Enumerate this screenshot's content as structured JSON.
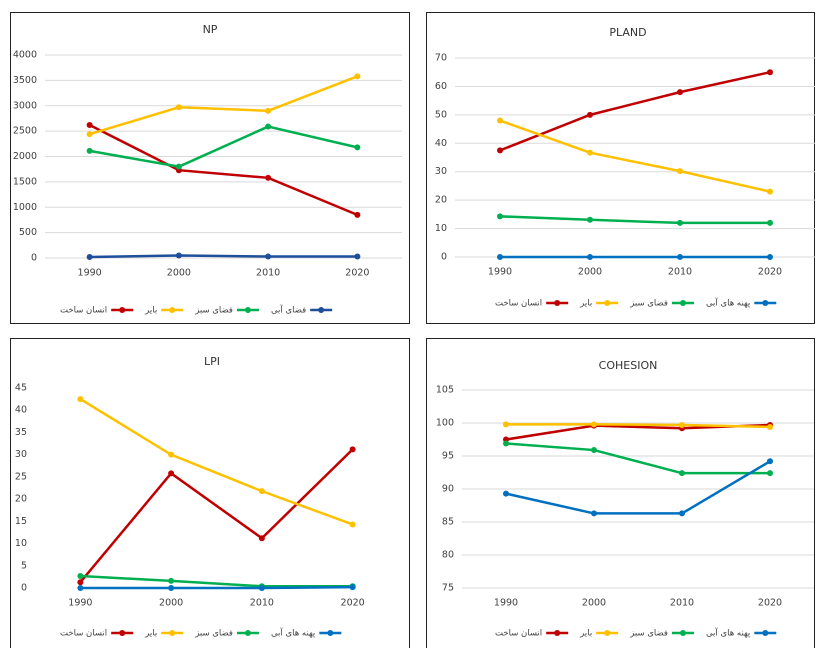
{
  "chart_data": [
    {
      "type": "line",
      "title": "NP",
      "categories": [
        "1990",
        "2000",
        "2010",
        "2020"
      ],
      "series": [
        {
          "name": "انسان ساخت",
          "color": "#c00000",
          "values": [
            2620,
            1730,
            1580,
            850
          ]
        },
        {
          "name": "بایر",
          "color": "#ffc000",
          "values": [
            2440,
            2970,
            2900,
            3580
          ]
        },
        {
          "name": "فضای سبز",
          "color": "#00b050",
          "values": [
            2110,
            1800,
            2590,
            2180
          ]
        },
        {
          "name": "فضای آبی",
          "color": "#1f4e9a",
          "values": [
            20,
            50,
            30,
            30
          ]
        }
      ],
      "ylim": [
        0,
        4000
      ],
      "yticks": [
        0,
        500,
        1000,
        1500,
        2000,
        2500,
        3000,
        3500,
        4000
      ],
      "grid": true,
      "legend": "bottom"
    },
    {
      "type": "line",
      "title": "PLAND",
      "categories": [
        "1990",
        "2000",
        "2010",
        "2020"
      ],
      "series": [
        {
          "name": "انسان ساخت",
          "color": "#c00000",
          "values": [
            37.5,
            50,
            58,
            65
          ]
        },
        {
          "name": "بایر",
          "color": "#ffc000",
          "values": [
            48,
            36.7,
            30.2,
            23
          ]
        },
        {
          "name": "فضای سبز",
          "color": "#00b050",
          "values": [
            14.3,
            13.1,
            12,
            12
          ]
        },
        {
          "name": "پهنه های آبی",
          "color": "#0070c0",
          "values": [
            0,
            0,
            0,
            0
          ]
        }
      ],
      "ylim": [
        0,
        70
      ],
      "yticks": [
        0,
        10,
        20,
        30,
        40,
        50,
        60,
        70
      ],
      "grid": true,
      "legend": "bottom"
    },
    {
      "type": "line",
      "title": "LPI",
      "categories": [
        "1990",
        "2000",
        "2010",
        "2020"
      ],
      "series": [
        {
          "name": "انسان ساخت",
          "color": "#c00000",
          "values": [
            1.3,
            25.8,
            11.2,
            31.2
          ]
        },
        {
          "name": "بایر",
          "color": "#ffc000",
          "values": [
            42.5,
            30,
            21.8,
            14.3
          ]
        },
        {
          "name": "فضای سبز",
          "color": "#00b050",
          "values": [
            2.7,
            1.6,
            0.4,
            0.4
          ]
        },
        {
          "name": "پهنه های آبی",
          "color": "#0070c0",
          "values": [
            0,
            0,
            0,
            0.2
          ]
        }
      ],
      "ylim": [
        0,
        45
      ],
      "yticks": [
        0,
        5,
        10,
        15,
        20,
        25,
        30,
        35,
        40,
        45
      ],
      "grid": false,
      "legend": "bottom"
    },
    {
      "type": "line",
      "title": "COHESION",
      "categories": [
        "1990",
        "2000",
        "2010",
        "2020"
      ],
      "series": [
        {
          "name": "انسان ساخت",
          "color": "#c00000",
          "values": [
            97.5,
            99.6,
            99.2,
            99.7
          ]
        },
        {
          "name": "بایر",
          "color": "#ffc000",
          "values": [
            99.8,
            99.8,
            99.7,
            99.4
          ]
        },
        {
          "name": "فضای سبز",
          "color": "#00b050",
          "values": [
            96.9,
            95.9,
            92.4,
            92.4
          ]
        },
        {
          "name": "پهنه های آبی",
          "color": "#0070c0",
          "values": [
            89.3,
            86.3,
            86.3,
            94.2
          ]
        }
      ],
      "ylim": [
        75,
        105
      ],
      "yticks": [
        75,
        80,
        85,
        90,
        95,
        100,
        105
      ],
      "grid": true,
      "legend": "bottom"
    }
  ]
}
